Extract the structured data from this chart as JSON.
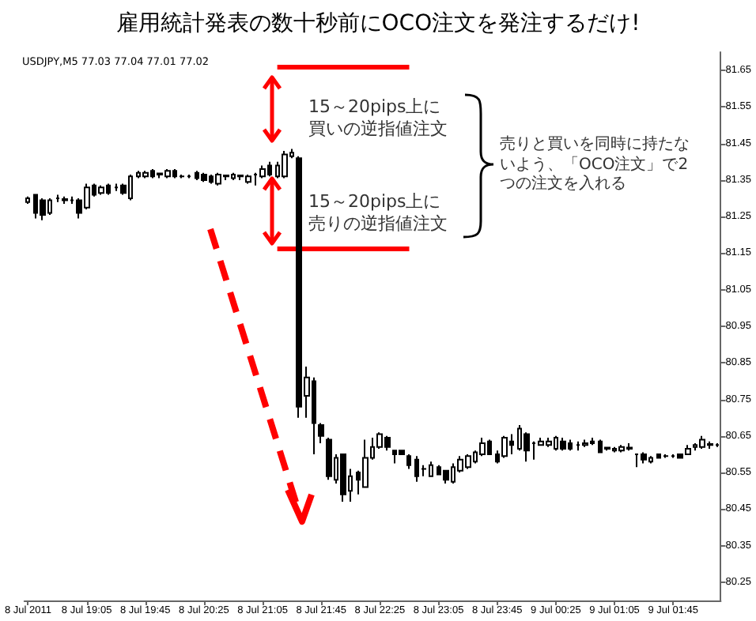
{
  "chart_data": {
    "type": "candlestick",
    "title": "雇用統計発表の数十秒前にOCO注文を発注するだけ!",
    "annotations": [
      "USDJPY,M5  77.03 77.04 77.01 77.02",
      "15～20pips上に買いの逆指値注文",
      "15～20pips上に売りの逆指値注文",
      "売りと買いを同時に持たないよう、「OCO注文」で2つの注文を入れる"
    ],
    "categories": [
      "8 Jul 2011",
      null,
      null,
      null,
      null,
      null,
      null,
      null,
      "8 Jul 19:05",
      null,
      null,
      null,
      null,
      null,
      null,
      null,
      "8 Jul 19:45",
      null,
      null,
      null,
      null,
      null,
      null,
      null,
      "8 Jul 20:25",
      null,
      null,
      null,
      null,
      null,
      null,
      null,
      "8 Jul 21:05",
      null,
      null,
      null,
      null,
      null,
      null,
      null,
      "8 Jul 21:45",
      null,
      null,
      null,
      null,
      null,
      null,
      null,
      "8 Jul 22:25",
      null,
      null,
      null,
      null,
      null,
      null,
      null,
      "8 Jul 23:05",
      null,
      null,
      null,
      null,
      null,
      null,
      null,
      "8 Jul 23:45",
      null,
      null,
      null,
      null,
      null,
      null,
      null,
      "9 Jul 00:25",
      null,
      null,
      null,
      null,
      null,
      null,
      null,
      "9 Jul 01:05",
      null,
      null,
      null,
      null,
      null,
      null,
      null,
      "9 Jul 01:45",
      null,
      null,
      null,
      null,
      null,
      null
    ],
    "series": [
      {
        "color": "#000000",
        "ohlc": [
          [
            81.29,
            81.305,
            81.285,
            81.3
          ],
          [
            81.31,
            81.31,
            81.245,
            81.26
          ],
          [
            81.295,
            81.3,
            81.24,
            81.255
          ],
          [
            81.26,
            81.3,
            81.255,
            81.295
          ],
          [
            81.3,
            81.31,
            81.29,
            81.3
          ],
          [
            81.295,
            81.305,
            81.285,
            81.298
          ],
          [
            81.295,
            81.305,
            81.285,
            81.295
          ],
          [
            81.295,
            81.3,
            81.245,
            81.26
          ],
          [
            81.275,
            81.34,
            81.27,
            81.33
          ],
          [
            81.335,
            81.34,
            81.305,
            81.31
          ],
          [
            81.315,
            81.335,
            81.31,
            81.33
          ],
          [
            81.335,
            81.34,
            81.31,
            81.315
          ],
          [
            81.33,
            81.34,
            81.32,
            81.33
          ],
          [
            81.335,
            81.34,
            81.31,
            81.315
          ],
          [
            81.3,
            81.365,
            81.295,
            81.36
          ],
          [
            81.36,
            81.375,
            81.355,
            81.37
          ],
          [
            81.36,
            81.375,
            81.355,
            81.37
          ],
          [
            81.375,
            81.38,
            81.355,
            81.36
          ],
          [
            81.365,
            81.37,
            81.355,
            81.368
          ],
          [
            81.36,
            81.38,
            81.355,
            81.375
          ],
          [
            81.375,
            81.38,
            81.355,
            81.36
          ],
          [
            81.36,
            81.365,
            81.355,
            81.36
          ],
          [
            81.36,
            81.365,
            81.355,
            81.36
          ],
          [
            81.37,
            81.375,
            81.35,
            81.355
          ],
          [
            81.365,
            81.37,
            81.345,
            81.35
          ],
          [
            81.36,
            81.365,
            81.34,
            81.345
          ],
          [
            81.34,
            81.37,
            81.335,
            81.365
          ],
          [
            81.36,
            81.365,
            81.35,
            81.363
          ],
          [
            81.355,
            81.37,
            81.35,
            81.365
          ],
          [
            81.36,
            81.365,
            81.35,
            81.363
          ],
          [
            81.345,
            81.365,
            81.34,
            81.36
          ],
          [
            81.365,
            81.37,
            81.335,
            81.365
          ],
          [
            81.36,
            81.39,
            81.355,
            81.38
          ],
          [
            81.39,
            81.4,
            81.36,
            81.365
          ],
          [
            81.36,
            81.4,
            81.355,
            81.39
          ],
          [
            81.36,
            81.43,
            81.355,
            81.42
          ],
          [
            81.415,
            81.435,
            81.41,
            81.425
          ],
          [
            81.41,
            81.415,
            80.7,
            80.73
          ],
          [
            80.76,
            80.84,
            80.7,
            80.81
          ],
          [
            80.8,
            80.81,
            80.6,
            80.685
          ],
          [
            80.68,
            80.685,
            80.63,
            80.65
          ],
          [
            80.64,
            80.645,
            80.53,
            80.54
          ],
          [
            80.53,
            80.6,
            80.52,
            80.59
          ],
          [
            80.6,
            80.6,
            80.47,
            80.49
          ],
          [
            80.5,
            80.56,
            80.47,
            80.54
          ],
          [
            80.55,
            80.555,
            80.49,
            80.53
          ],
          [
            80.51,
            80.64,
            80.51,
            80.59
          ],
          [
            80.59,
            80.645,
            80.585,
            80.62
          ],
          [
            80.62,
            80.66,
            80.615,
            80.655
          ],
          [
            80.645,
            80.65,
            80.61,
            80.62
          ],
          [
            80.61,
            80.61,
            80.575,
            80.6
          ],
          [
            80.61,
            80.61,
            80.6,
            80.6
          ],
          [
            80.595,
            80.6,
            80.56,
            80.57
          ],
          [
            80.585,
            80.595,
            80.525,
            80.54
          ],
          [
            80.56,
            80.57,
            80.54,
            80.56
          ],
          [
            80.54,
            80.58,
            80.54,
            80.57
          ],
          [
            80.565,
            80.57,
            80.545,
            80.545
          ],
          [
            80.555,
            80.555,
            80.52,
            80.53
          ],
          [
            80.525,
            80.575,
            80.52,
            80.565
          ],
          [
            80.555,
            80.595,
            80.55,
            80.585
          ],
          [
            80.565,
            80.6,
            80.56,
            80.595
          ],
          [
            80.58,
            80.61,
            80.575,
            80.605
          ],
          [
            80.6,
            80.645,
            80.595,
            80.63
          ],
          [
            80.635,
            80.64,
            80.6,
            80.6
          ],
          [
            80.6,
            80.61,
            80.575,
            80.58
          ],
          [
            80.595,
            80.65,
            80.59,
            80.645
          ],
          [
            80.635,
            80.655,
            80.6,
            80.625
          ],
          [
            80.615,
            80.68,
            80.61,
            80.67
          ],
          [
            80.655,
            80.66,
            80.58,
            80.61
          ],
          [
            80.63,
            80.635,
            80.585,
            80.63
          ],
          [
            80.625,
            80.645,
            80.625,
            80.635
          ],
          [
            80.625,
            80.645,
            80.62,
            80.635
          ],
          [
            80.615,
            80.65,
            80.61,
            80.645
          ],
          [
            80.635,
            80.645,
            80.61,
            80.615
          ],
          [
            80.63,
            80.64,
            80.61,
            80.615
          ],
          [
            80.625,
            80.635,
            80.61,
            80.625
          ],
          [
            80.625,
            80.64,
            80.62,
            80.63
          ],
          [
            80.635,
            80.645,
            80.625,
            80.63
          ],
          [
            80.635,
            80.64,
            80.605,
            80.605
          ],
          [
            80.615,
            80.62,
            80.61,
            80.618
          ],
          [
            80.61,
            80.62,
            80.605,
            80.615
          ],
          [
            80.61,
            80.625,
            80.605,
            80.62
          ],
          [
            80.615,
            80.63,
            80.61,
            80.618
          ],
          [
            80.6,
            80.6,
            80.565,
            80.6
          ],
          [
            80.6,
            80.605,
            80.575,
            80.585
          ],
          [
            80.58,
            80.595,
            80.575,
            80.59
          ],
          [
            80.6,
            80.6,
            80.59,
            80.59
          ],
          [
            80.595,
            80.6,
            80.59,
            80.595
          ],
          [
            80.595,
            80.6,
            80.59,
            80.595
          ],
          [
            80.6,
            80.6,
            80.59,
            80.59
          ],
          [
            80.6,
            80.625,
            80.6,
            80.615
          ],
          [
            80.62,
            80.63,
            80.61,
            80.625
          ],
          [
            80.62,
            80.65,
            80.615,
            80.64
          ],
          [
            80.625,
            80.635,
            80.615,
            80.628
          ],
          [
            80.625,
            80.63,
            80.62,
            80.625
          ]
        ]
      }
    ],
    "ylim": [
      80.2,
      81.7
    ],
    "yticks": [
      81.65,
      81.55,
      81.45,
      81.35,
      81.25,
      81.15,
      81.05,
      80.95,
      80.85,
      80.75,
      80.65,
      80.55,
      80.45,
      80.35,
      80.25
    ],
    "ref_lines": [
      {
        "axis": "y",
        "value": 81.66,
        "color": "#ff0000"
      },
      {
        "axis": "y",
        "value": 81.165,
        "color": "#ff0000"
      }
    ]
  }
}
